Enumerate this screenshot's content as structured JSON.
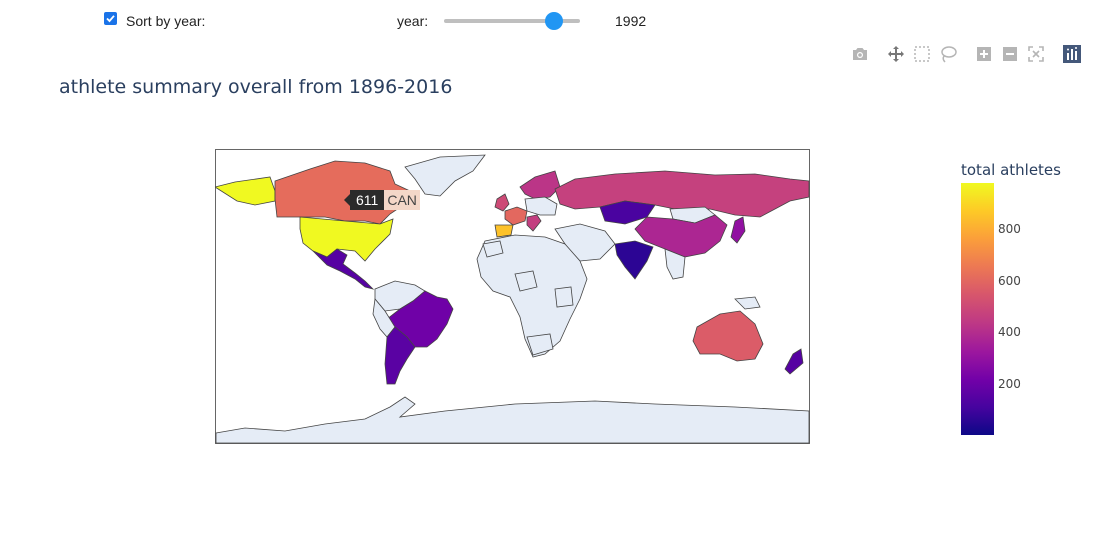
{
  "controls": {
    "sort_label": "Sort by year:",
    "sort_checked": true,
    "year_label": "year:",
    "year_value": "1992",
    "slider_fraction": 0.81
  },
  "modebar": {
    "icons": [
      "camera-icon",
      "pan-icon",
      "box-select-icon",
      "lasso-icon",
      "zoom-in-icon",
      "zoom-out-icon",
      "reset-view-icon",
      "plotly-logo-icon"
    ]
  },
  "figure": {
    "title": "athlete summary overall from 1896-2016"
  },
  "chart_data": {
    "type": "choropleth",
    "projection": "equirectangular",
    "colorscale": "plasma",
    "no_data_color": "#e5ecf6",
    "colorbar": {
      "title": "total athletes",
      "range": [
        1,
        980
      ],
      "ticks": [
        200,
        400,
        600,
        800
      ],
      "tick_labels": [
        "200",
        "400",
        "600",
        "800"
      ]
    },
    "hover": {
      "location": "CAN",
      "value": 611,
      "value_label": "611",
      "name_label": "CAN"
    },
    "regions": [
      {
        "code": "USA",
        "value": 980
      },
      {
        "code": "CAN",
        "value": 611
      },
      {
        "code": "RUS",
        "value": 470
      },
      {
        "code": "CHN",
        "value": 380
      },
      {
        "code": "AUS",
        "value": 560
      },
      {
        "code": "MEX",
        "value": 150
      },
      {
        "code": "BRA",
        "value": 210
      },
      {
        "code": "ARG",
        "value": 160
      },
      {
        "code": "FRA",
        "value": 600
      },
      {
        "code": "ESP",
        "value": 850
      },
      {
        "code": "GBR",
        "value": 500
      },
      {
        "code": "ITA",
        "value": 460
      },
      {
        "code": "SCA",
        "value": 430
      },
      {
        "code": "KAZ",
        "value": 120
      },
      {
        "code": "IND",
        "value": 60
      },
      {
        "code": "NZL",
        "value": 150
      },
      {
        "code": "JPN",
        "value": 300
      }
    ]
  }
}
